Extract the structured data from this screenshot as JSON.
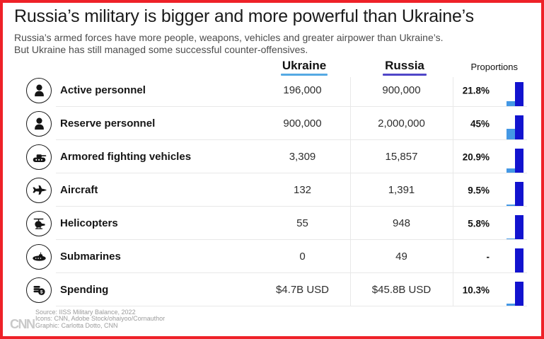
{
  "title": "Russia’s military is bigger and more powerful than Ukraine’s",
  "subtitle_line1": "Russia’s armed forces have more people, weapons, vehicles and greater airpower than Ukraine’s.",
  "subtitle_line2": "But Ukraine has still managed some successful counter-offensives.",
  "table": {
    "columns": {
      "ukraine": "Ukraine",
      "russia": "Russia",
      "proportions": "Proportions"
    },
    "rows": [
      {
        "label": "Active personnel",
        "icon": "soldier-icon",
        "ukraine": "196,000",
        "russia": "900,000",
        "proportion_label": "21.8%",
        "proportion_pct": 21.8
      },
      {
        "label": "Reserve personnel",
        "icon": "soldier-icon",
        "ukraine": "900,000",
        "russia": "2,000,000",
        "proportion_label": "45%",
        "proportion_pct": 45
      },
      {
        "label": "Armored fighting vehicles",
        "icon": "tank-icon",
        "ukraine": "3,309",
        "russia": "15,857",
        "proportion_label": "20.9%",
        "proportion_pct": 20.9
      },
      {
        "label": "Aircraft",
        "icon": "jet-icon",
        "ukraine": "132",
        "russia": "1,391",
        "proportion_label": "9.5%",
        "proportion_pct": 9.5
      },
      {
        "label": "Helicopters",
        "icon": "helicopter-icon",
        "ukraine": "55",
        "russia": "948",
        "proportion_label": "5.8%",
        "proportion_pct": 5.8
      },
      {
        "label": "Submarines",
        "icon": "submarine-icon",
        "ukraine": "0",
        "russia": "49",
        "proportion_label": "-",
        "proportion_pct": null
      },
      {
        "label": "Spending",
        "icon": "coins-icon",
        "ukraine": "$4.7B USD",
        "russia": "$45.8B USD",
        "proportion_label": "10.3%",
        "proportion_pct": 10.3
      }
    ]
  },
  "footer": {
    "logo": "CNN",
    "source": "Source:  IISS Military Balance, 2022",
    "icons_credit": "Icons: CNN, Adobe Stock/ohaiyoo/Cornauthor",
    "graphic_credit": "Graphic: Carlotta Dotto, CNN"
  },
  "colors": {
    "border": "#EE2128",
    "ukraine_accent": "#55A9E3",
    "russia_accent": "#4F46C8",
    "ukraine_bar": "#4498E5",
    "russia_bar": "#1213CF",
    "logo_gray": "#C9C9C9"
  },
  "chart_data": {
    "type": "table",
    "title": "Russia’s military is bigger and more powerful than Ukraine’s",
    "subtitle": "Russia’s armed forces have more people, weapons, vehicles and greater airpower than Ukraine’s. But Ukraine has still managed some successful counter-offensives.",
    "categories": [
      "Active personnel",
      "Reserve personnel",
      "Armored fighting vehicles",
      "Aircraft",
      "Helicopters",
      "Submarines",
      "Spending"
    ],
    "series": [
      {
        "name": "Ukraine",
        "values": [
          196000,
          900000,
          3309,
          132,
          55,
          0,
          4.7
        ]
      },
      {
        "name": "Russia",
        "values": [
          900000,
          2000000,
          15857,
          1391,
          948,
          49,
          45.8
        ]
      }
    ],
    "spending_unit": "billion USD",
    "proportion_labels": [
      "21.8%",
      "45%",
      "20.9%",
      "9.5%",
      "5.8%",
      "-",
      "10.3%"
    ],
    "proportions_pct": [
      21.8,
      45,
      20.9,
      9.5,
      5.8,
      null,
      10.3
    ],
    "legend": [
      "Ukraine",
      "Russia"
    ],
    "legend_colors": {
      "Ukraine": "#4498E5",
      "Russia": "#1213CF"
    },
    "source": "IISS Military Balance, 2022"
  }
}
